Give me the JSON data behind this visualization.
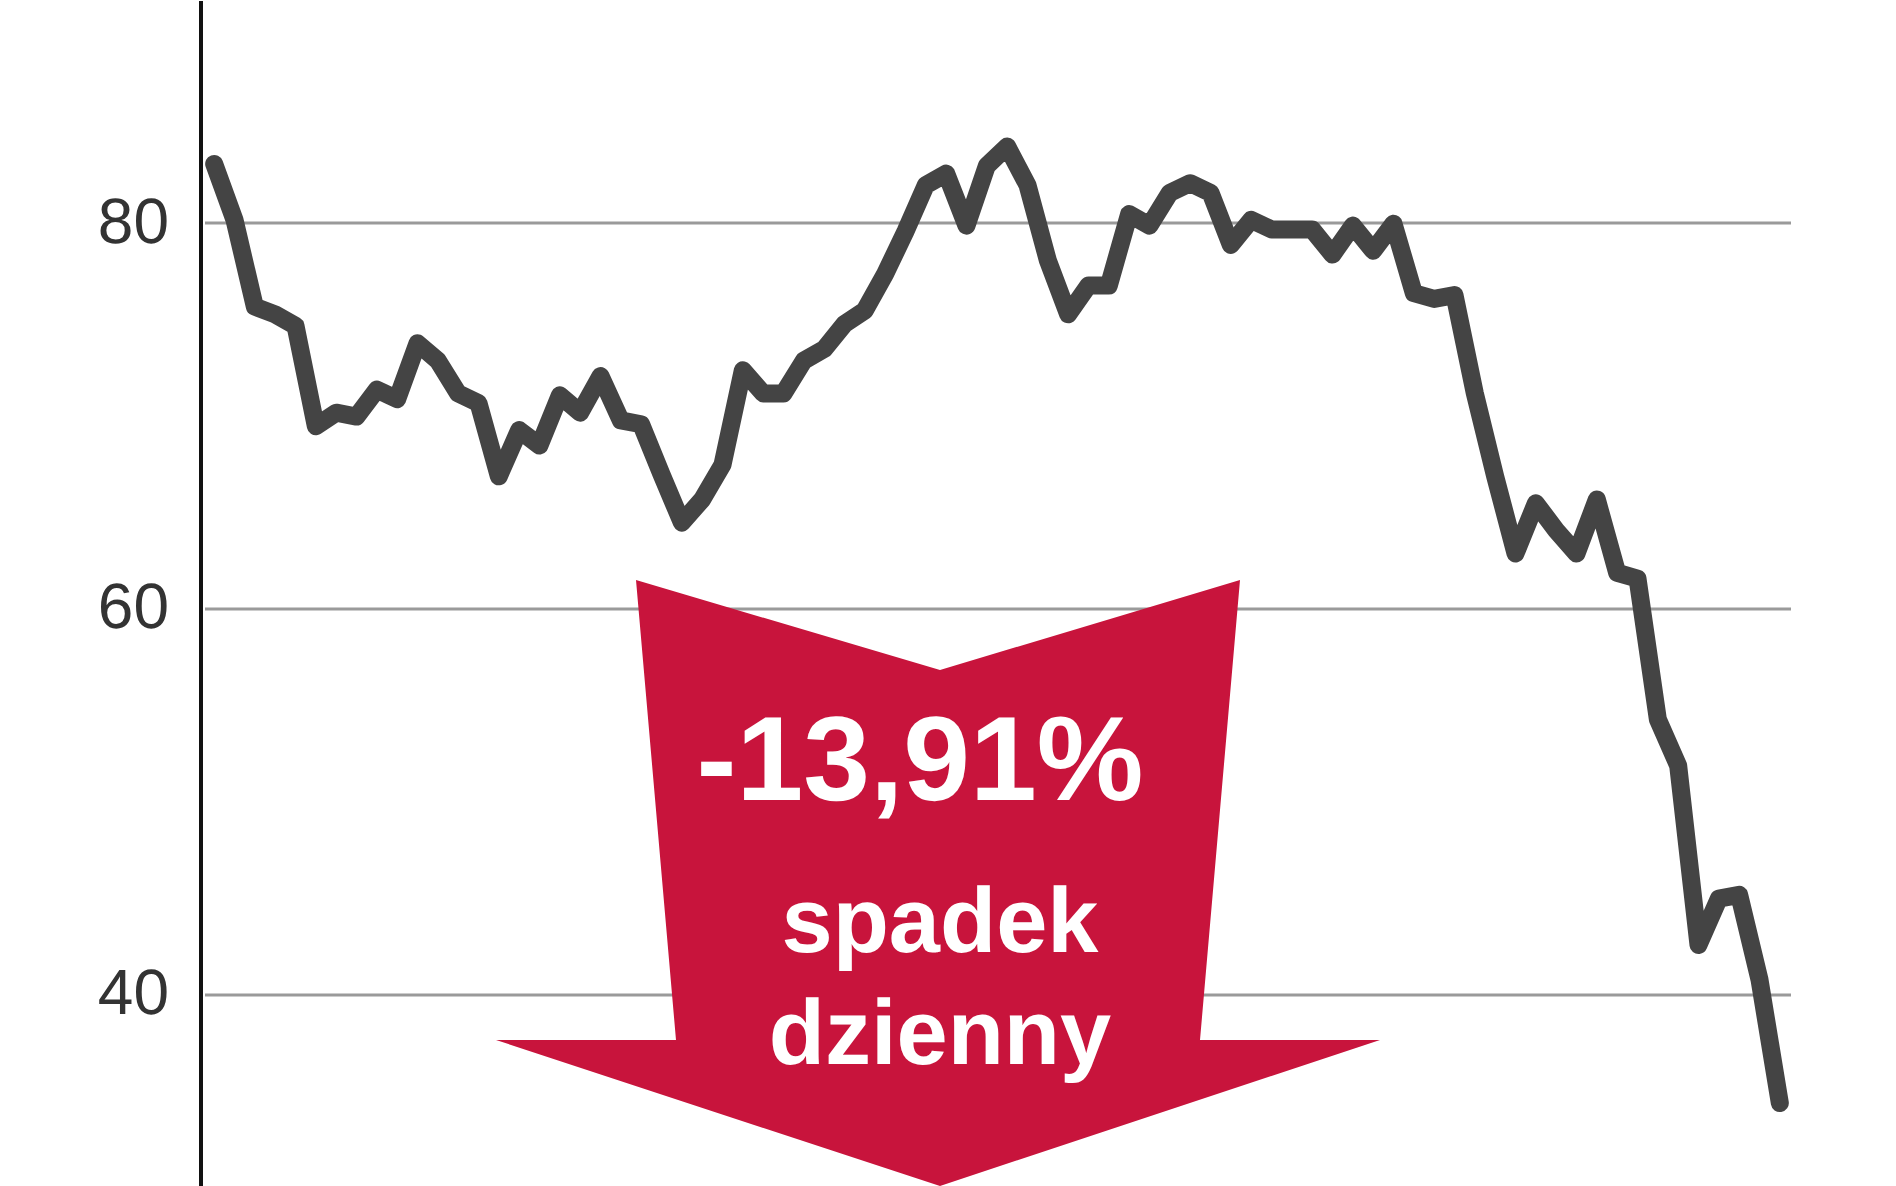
{
  "chart_data": {
    "type": "line",
    "color": "#444444",
    "grid": "y",
    "ylim": [
      30,
      91.5
    ],
    "yticks": [
      40,
      60,
      80
    ],
    "categories": [
      null,
      null,
      null,
      null,
      null,
      null,
      null,
      null,
      null,
      null,
      null,
      null,
      null,
      null,
      null,
      null,
      null,
      null,
      null,
      null,
      null,
      null,
      null,
      null,
      null,
      null,
      null,
      null,
      null,
      null,
      null,
      null,
      null,
      null,
      null,
      null,
      null,
      null,
      null,
      null,
      null,
      null,
      null,
      null,
      null,
      null,
      null,
      null,
      null,
      null,
      null,
      null,
      null,
      null,
      null,
      null,
      null,
      null,
      null,
      null,
      null,
      null,
      null,
      null,
      null,
      null,
      null,
      null,
      null,
      null,
      null,
      null,
      null,
      null,
      null,
      null,
      null,
      null
    ],
    "values": [
      83.0,
      80.1,
      75.6,
      75.2,
      74.6,
      69.4,
      70.1,
      69.9,
      71.3,
      70.8,
      73.7,
      72.8,
      71.1,
      70.6,
      66.8,
      69.2,
      68.4,
      71.0,
      70.1,
      72.0,
      69.7,
      69.5,
      66.9,
      64.4,
      65.6,
      67.4,
      72.3,
      71.1,
      71.1,
      72.8,
      73.4,
      74.7,
      75.4,
      77.3,
      79.5,
      81.9,
      82.5,
      79.8,
      82.9,
      83.9,
      81.9,
      78.0,
      75.2,
      76.7,
      76.7,
      80.4,
      79.8,
      81.5,
      82.0,
      81.5,
      78.8,
      80.1,
      79.6,
      79.6,
      79.6,
      78.3,
      79.8,
      78.5,
      79.9,
      76.3,
      76.0,
      76.2,
      71.1,
      66.8,
      62.8,
      65.4,
      64.0,
      62.8,
      65.6,
      61.8,
      61.5,
      54.2,
      51.8,
      42.5,
      44.9,
      45.1,
      40.7,
      34.3
    ],
    "annotations": [
      "-13,91%",
      "spadek dzienny"
    ]
  }
}
